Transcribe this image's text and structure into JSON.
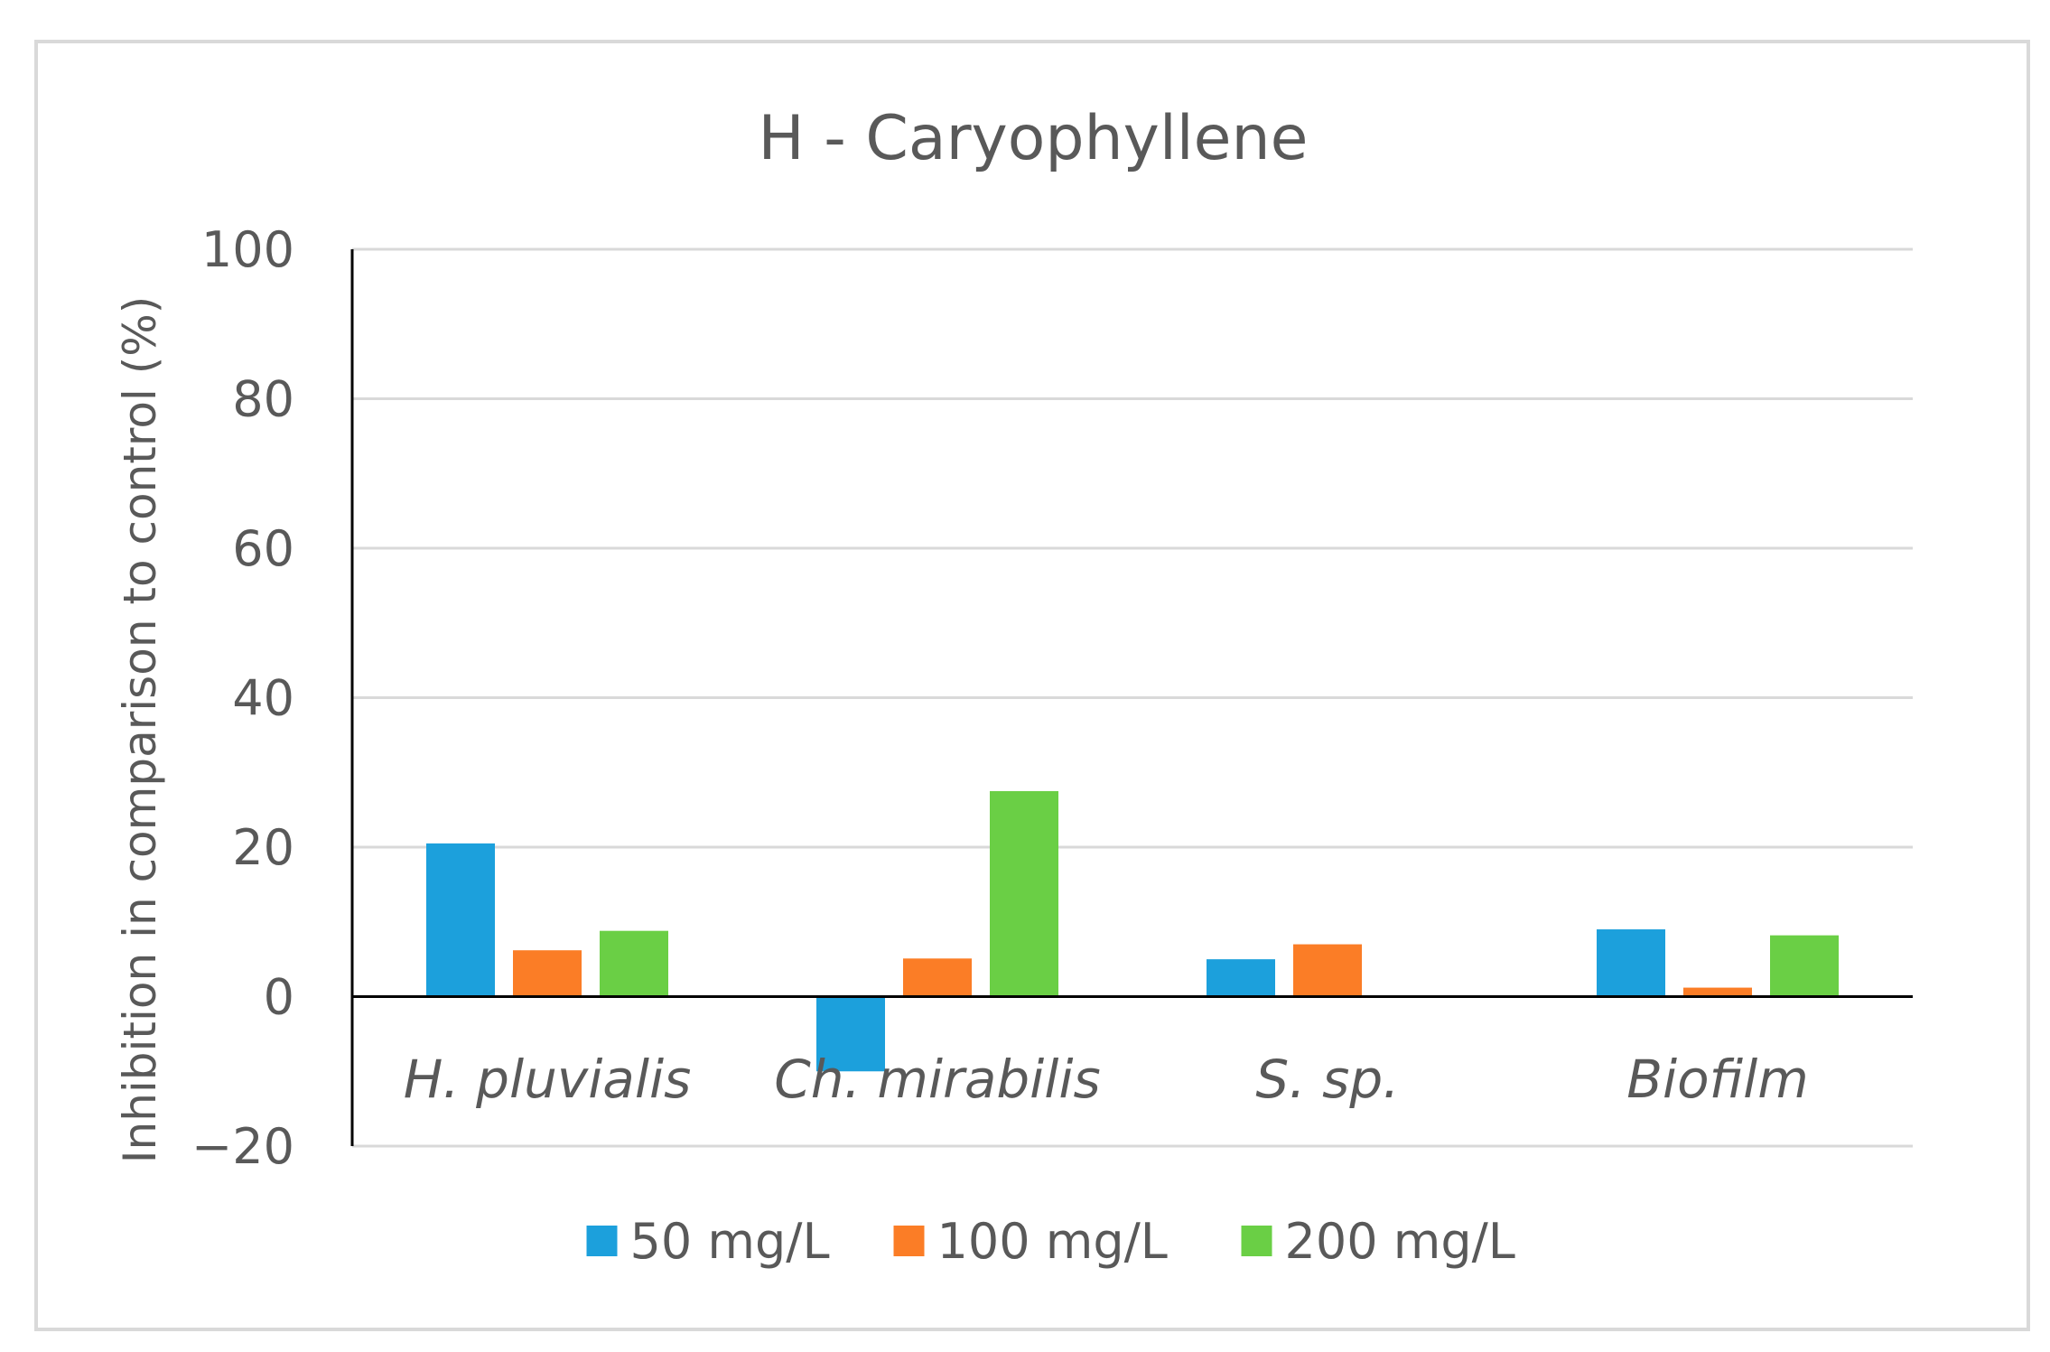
{
  "chart_data": {
    "type": "bar",
    "title": "H - Caryophyllene",
    "xlabel": "",
    "ylabel": "Inhibition in comparison to control (%)",
    "categories": [
      "H. pluvialis",
      "Ch. mirabilis",
      "S. sp.",
      "Biofilm"
    ],
    "series": [
      {
        "name": "50 mg/L",
        "color": "#1ca0dc",
        "values": [
          20.5,
          -10,
          5,
          9
        ]
      },
      {
        "name": "100 mg/L",
        "color": "#fb7d26",
        "values": [
          6.2,
          5.1,
          7,
          1.2
        ]
      },
      {
        "name": "200 mg/L",
        "color": "#6acf45",
        "values": [
          8.8,
          27.5,
          0,
          8.2
        ]
      }
    ],
    "ylim": [
      -20,
      100
    ],
    "yticks": [
      100,
      80,
      60,
      40,
      20,
      0,
      -20
    ],
    "ytick_labels": [
      "100",
      "80",
      "60",
      "40",
      "20",
      "0",
      "−20"
    ],
    "grid": true,
    "legend_position": "bottom"
  }
}
